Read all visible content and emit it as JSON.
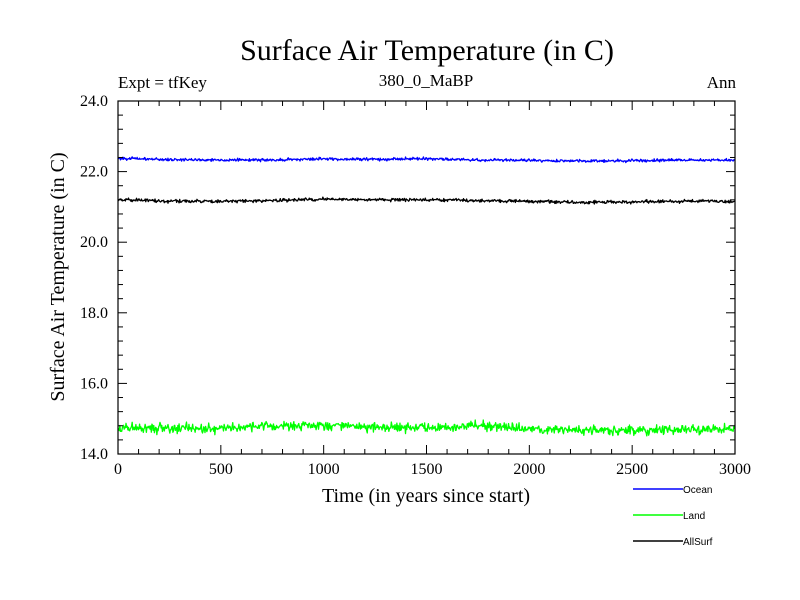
{
  "chart_data": {
    "type": "line",
    "title": "Surface Air Temperature (in C)",
    "subtitle_left": "Expt = tfKey",
    "subtitle_center": "380_0_MaBP",
    "subtitle_right": "Ann",
    "xlabel": "Time (in years since start)",
    "ylabel": "Surface Air Temperature (in C)",
    "xlim": [
      0,
      3000
    ],
    "ylim": [
      14.0,
      24.0
    ],
    "x_ticks": [
      0,
      500,
      1000,
      1500,
      2000,
      2500,
      3000
    ],
    "x_tick_labels": [
      "0",
      "500",
      "1000",
      "1500",
      "2000",
      "2500",
      "3000"
    ],
    "y_ticks": [
      14,
      16,
      18,
      20,
      22,
      24
    ],
    "y_tick_labels": [
      "14.0",
      "16.0",
      "18.0",
      "20.0",
      "22.0",
      "24.0"
    ],
    "grid": false,
    "legend_position": "bottom-right, outside plot",
    "series": [
      {
        "name": "Ocean",
        "color": "#0000ff",
        "x": [
          0,
          250,
          500,
          750,
          1000,
          1250,
          1500,
          1750,
          2000,
          2250,
          2500,
          2750,
          3000
        ],
        "values": [
          22.38,
          22.34,
          22.33,
          22.33,
          22.36,
          22.35,
          22.37,
          22.33,
          22.32,
          22.3,
          22.31,
          22.33,
          22.33
        ],
        "noise_amplitude": 0.06
      },
      {
        "name": "Land",
        "color": "#00ff00",
        "x": [
          0,
          250,
          500,
          750,
          1000,
          1250,
          1500,
          1750,
          2000,
          2250,
          2500,
          2750,
          3000
        ],
        "values": [
          14.75,
          14.72,
          14.74,
          14.8,
          14.82,
          14.78,
          14.75,
          14.8,
          14.72,
          14.65,
          14.67,
          14.68,
          14.72
        ],
        "noise_amplitude": 0.2
      },
      {
        "name": "AllSurf",
        "color": "#000000",
        "x": [
          0,
          250,
          500,
          750,
          1000,
          1250,
          1500,
          1750,
          2000,
          2250,
          2500,
          2750,
          3000
        ],
        "values": [
          21.2,
          21.16,
          21.16,
          21.18,
          21.22,
          21.2,
          21.2,
          21.18,
          21.16,
          21.13,
          21.14,
          21.16,
          21.16
        ],
        "noise_amplitude": 0.07
      }
    ]
  }
}
